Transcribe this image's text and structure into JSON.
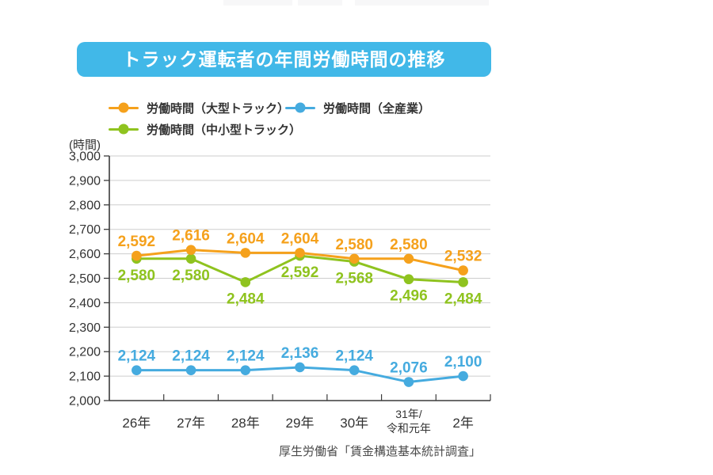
{
  "page": {
    "banner_color": "#41B8E8",
    "background": "#FFFFFF",
    "source_note": "厚生労働省「賃金構造基本統計調査」"
  },
  "chart_data": {
    "type": "line",
    "title": "トラック運転者の年間労働時間の推移",
    "unit_label": "(時間)",
    "categories": [
      "26年",
      "27年",
      "28年",
      "29年",
      "30年",
      "31年/\n令和元年",
      "2年"
    ],
    "ylim": [
      2000,
      3000
    ],
    "ytick_step": 100,
    "grid": true,
    "legend_position": "top",
    "series": [
      {
        "key": "large-truck",
        "name": "労働時間（大型トラック）",
        "color": "#F5A11C",
        "values": [
          2592,
          2616,
          2604,
          2604,
          2580,
          2580,
          2532
        ],
        "label_position": "above"
      },
      {
        "key": "small-medium-truck",
        "name": "労働時間（中小型トラック）",
        "color": "#8FC31F",
        "values": [
          2580,
          2580,
          2484,
          2592,
          2568,
          2496,
          2484
        ],
        "label_position": "below"
      },
      {
        "key": "all-industries",
        "name": "労働時間（全産業）",
        "color": "#45ABDF",
        "values": [
          2124,
          2124,
          2124,
          2136,
          2124,
          2076,
          2100
        ],
        "label_position": "above"
      }
    ],
    "render_order": [
      1,
      2,
      0
    ],
    "legend_order": [
      0,
      2,
      1
    ],
    "axis_color": "#3B3B3B",
    "grid_color": "#CDCDCD",
    "tick_label_color": "#333333"
  }
}
